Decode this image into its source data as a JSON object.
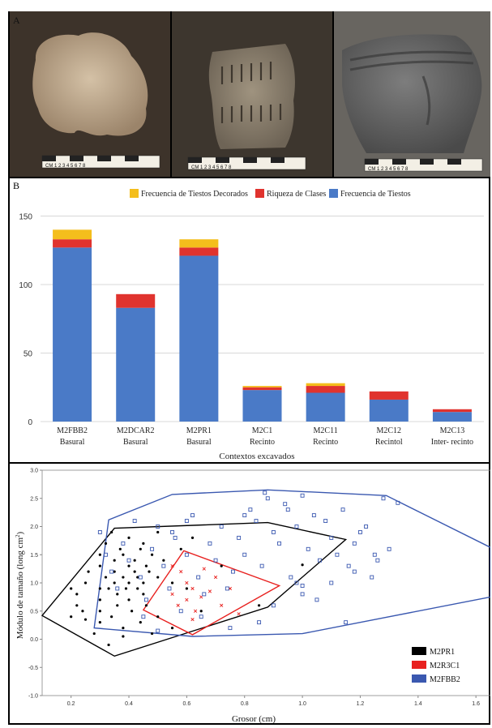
{
  "panel_a": {
    "label": "A",
    "photos": [
      {
        "name": "sherd-plain",
        "bg": "#3a3228",
        "sherd": "#b9a389"
      },
      {
        "name": "sherd-incised",
        "bg": "#3b3530",
        "sherd": "#8c806e"
      },
      {
        "name": "sherd-dark",
        "bg": "#4b4742",
        "sherd": "#5f5f5f"
      }
    ],
    "scale_label": "CM 1 2 3 4 5 6 7 8"
  },
  "panel_b": {
    "label": "B",
    "legend": [
      "Frecuencia de Tiestos Decorados",
      "Riqueza de Clases",
      "Frecuencia de Tiestos"
    ],
    "xlabel": "Contextos excavados"
  },
  "panel_c": {
    "ylabel": "Módulo de tamaño (long cm",
    "ylabel_sup": "2",
    "ylabel_end": ")",
    "xlabel": "Grosor (cm)",
    "legend": [
      "M2PR1",
      "M2R3C1",
      "M2FBB2"
    ]
  },
  "chart_data": [
    {
      "type": "bar",
      "stacked": true,
      "categories": [
        "M2FBB2",
        "M2DCAR2",
        "M2PR1",
        "M2C1",
        "M2C11",
        "M2C12",
        "M2C13"
      ],
      "category_sublabels": [
        "Basural",
        "Basural",
        "Basural",
        "Recinto",
        "Recinto",
        "Recintol",
        "Inter- recinto"
      ],
      "series": [
        {
          "name": "Frecuencia de Tiestos",
          "color": "#4a7ac7",
          "values": [
            127,
            83,
            121,
            23,
            21,
            16,
            7
          ]
        },
        {
          "name": "Riqueza de Clases",
          "color": "#e0332e",
          "values": [
            6,
            10,
            6,
            2,
            5,
            6,
            2
          ]
        },
        {
          "name": "Frecuencia de Tiestos Decorados",
          "color": "#f4be1c",
          "values": [
            7,
            0,
            6,
            1,
            2,
            0,
            0
          ]
        }
      ],
      "yticks": [
        0,
        50,
        100,
        150
      ],
      "ylim": [
        0,
        155
      ],
      "xlabel": "Contextos excavados",
      "grid": true,
      "legend_position": "top"
    },
    {
      "type": "scatter",
      "xlabel": "Grosor (cm)",
      "ylabel": "Módulo de tamaño (long cm2)",
      "xlim": [
        0.1,
        1.65
      ],
      "ylim": [
        -1.0,
        3.0
      ],
      "xticks": [
        0.2,
        0.4,
        0.6,
        0.8,
        1.0,
        1.2,
        1.4,
        1.6
      ],
      "yticks": [
        -1.0,
        -0.5,
        0.0,
        0.5,
        1.0,
        1.5,
        2.0,
        2.5,
        3.0
      ],
      "legend_position": "bottom-right",
      "series": [
        {
          "name": "M2PR1",
          "color": "#000000",
          "marker": "dot",
          "hull": [
            [
              0.1,
              0.42
            ],
            [
              0.35,
              1.97
            ],
            [
              0.88,
              2.07
            ],
            [
              1.15,
              1.77
            ],
            [
              0.88,
              0.57
            ],
            [
              0.35,
              -0.3
            ]
          ],
          "points": [
            [
              0.2,
              0.9
            ],
            [
              0.22,
              0.6
            ],
            [
              0.24,
              0.5
            ],
            [
              0.2,
              0.4
            ],
            [
              0.22,
              0.8
            ],
            [
              0.25,
              1.0
            ],
            [
              0.25,
              0.35
            ],
            [
              0.26,
              1.2
            ],
            [
              0.3,
              1.5
            ],
            [
              0.3,
              1.3
            ],
            [
              0.3,
              0.9
            ],
            [
              0.3,
              0.7
            ],
            [
              0.3,
              0.5
            ],
            [
              0.3,
              0.3
            ],
            [
              0.32,
              1.1
            ],
            [
              0.32,
              1.7
            ],
            [
              0.33,
              0.9
            ],
            [
              0.34,
              0.4
            ],
            [
              0.34,
              1.9
            ],
            [
              0.35,
              1.4
            ],
            [
              0.35,
              1.2
            ],
            [
              0.35,
              1.0
            ],
            [
              0.36,
              0.8
            ],
            [
              0.36,
              0.6
            ],
            [
              0.37,
              1.6
            ],
            [
              0.38,
              1.5
            ],
            [
              0.38,
              1.1
            ],
            [
              0.38,
              0.2
            ],
            [
              0.39,
              0.9
            ],
            [
              0.4,
              1.8
            ],
            [
              0.4,
              1.3
            ],
            [
              0.4,
              1.0
            ],
            [
              0.4,
              0.7
            ],
            [
              0.41,
              0.5
            ],
            [
              0.42,
              1.4
            ],
            [
              0.42,
              1.2
            ],
            [
              0.43,
              1.1
            ],
            [
              0.43,
              0.9
            ],
            [
              0.44,
              1.6
            ],
            [
              0.44,
              0.3
            ],
            [
              0.45,
              1.7
            ],
            [
              0.45,
              1.0
            ],
            [
              0.45,
              0.8
            ],
            [
              0.46,
              1.3
            ],
            [
              0.46,
              0.6
            ],
            [
              0.47,
              1.2
            ],
            [
              0.48,
              1.5
            ],
            [
              0.48,
              0.1
            ],
            [
              0.5,
              1.9
            ],
            [
              0.5,
              1.1
            ],
            [
              0.5,
              0.4
            ],
            [
              0.52,
              1.4
            ],
            [
              0.55,
              1.0
            ],
            [
              0.55,
              0.2
            ],
            [
              0.58,
              1.6
            ],
            [
              0.6,
              0.9
            ],
            [
              0.62,
              1.8
            ],
            [
              0.65,
              0.5
            ],
            [
              0.72,
              1.3
            ],
            [
              0.85,
              0.6
            ],
            [
              1.0,
              1.32
            ],
            [
              0.38,
              0.05
            ],
            [
              0.33,
              -0.1
            ],
            [
              0.28,
              0.1
            ]
          ]
        },
        {
          "name": "M2R3C1",
          "color": "#e8211f",
          "marker": "x",
          "hull": [
            [
              0.45,
              0.52
            ],
            [
              0.59,
              1.57
            ],
            [
              0.92,
              0.95
            ],
            [
              0.62,
              0.08
            ]
          ],
          "points": [
            [
              0.55,
              1.3
            ],
            [
              0.58,
              1.2
            ],
            [
              0.6,
              1.0
            ],
            [
              0.62,
              0.9
            ],
            [
              0.6,
              0.7
            ],
            [
              0.57,
              0.6
            ],
            [
              0.63,
              0.5
            ],
            [
              0.65,
              0.75
            ],
            [
              0.68,
              0.85
            ],
            [
              0.7,
              1.1
            ],
            [
              0.72,
              0.6
            ],
            [
              0.75,
              0.9
            ],
            [
              0.78,
              0.45
            ],
            [
              0.62,
              0.35
            ],
            [
              0.55,
              0.8
            ],
            [
              0.66,
              1.25
            ]
          ]
        },
        {
          "name": "M2FBB2",
          "color": "#3a58b0",
          "marker": "square",
          "hull": [
            [
              0.28,
              0.2
            ],
            [
              0.33,
              2.12
            ],
            [
              0.55,
              2.57
            ],
            [
              0.88,
              2.65
            ],
            [
              1.29,
              2.55
            ],
            [
              1.65,
              1.63
            ],
            [
              1.65,
              0.75
            ],
            [
              1.0,
              0.1
            ],
            [
              0.62,
              0.05
            ],
            [
              0.28,
              0.2
            ]
          ],
          "points": [
            [
              0.3,
              1.9
            ],
            [
              0.32,
              1.5
            ],
            [
              0.34,
              1.2
            ],
            [
              0.36,
              0.9
            ],
            [
              0.38,
              1.7
            ],
            [
              0.4,
              1.4
            ],
            [
              0.42,
              2.1
            ],
            [
              0.44,
              1.1
            ],
            [
              0.46,
              0.7
            ],
            [
              0.48,
              1.6
            ],
            [
              0.5,
              2.0
            ],
            [
              0.52,
              1.3
            ],
            [
              0.54,
              0.9
            ],
            [
              0.56,
              1.8
            ],
            [
              0.58,
              0.5
            ],
            [
              0.6,
              1.5
            ],
            [
              0.62,
              2.2
            ],
            [
              0.64,
              1.1
            ],
            [
              0.66,
              0.8
            ],
            [
              0.68,
              1.7
            ],
            [
              0.7,
              1.4
            ],
            [
              0.72,
              2.0
            ],
            [
              0.74,
              0.9
            ],
            [
              0.76,
              1.2
            ],
            [
              0.78,
              1.8
            ],
            [
              0.8,
              1.5
            ],
            [
              0.82,
              2.3
            ],
            [
              0.84,
              2.1
            ],
            [
              0.86,
              1.3
            ],
            [
              0.88,
              2.5
            ],
            [
              0.9,
              1.9
            ],
            [
              0.92,
              1.7
            ],
            [
              0.94,
              2.4
            ],
            [
              0.96,
              1.1
            ],
            [
              0.98,
              2.0
            ],
            [
              1.0,
              2.55
            ],
            [
              1.02,
              1.6
            ],
            [
              1.04,
              2.2
            ],
            [
              1.06,
              1.4
            ],
            [
              1.08,
              2.1
            ],
            [
              1.1,
              1.8
            ],
            [
              1.12,
              1.5
            ],
            [
              1.14,
              2.3
            ],
            [
              1.16,
              1.3
            ],
            [
              1.18,
              1.7
            ],
            [
              1.2,
              1.9
            ],
            [
              1.22,
              2.0
            ],
            [
              1.24,
              1.1
            ],
            [
              1.26,
              1.4
            ],
            [
              1.28,
              2.5
            ],
            [
              1.3,
              1.6
            ],
            [
              1.0,
              0.8
            ],
            [
              1.0,
              0.95
            ],
            [
              1.05,
              0.7
            ],
            [
              0.98,
              1.0
            ],
            [
              0.9,
              0.6
            ],
            [
              0.85,
              0.3
            ],
            [
              0.75,
              0.2
            ],
            [
              0.65,
              0.4
            ],
            [
              0.95,
              2.3
            ],
            [
              0.87,
              2.6
            ],
            [
              0.8,
              2.2
            ],
            [
              0.6,
              2.1
            ],
            [
              0.55,
              1.9
            ],
            [
              1.15,
              0.3
            ],
            [
              1.1,
              1.0
            ],
            [
              1.25,
              1.5
            ],
            [
              1.33,
              2.42
            ],
            [
              0.45,
              0.4
            ],
            [
              0.5,
              0.15
            ],
            [
              1.18,
              1.2
            ]
          ]
        }
      ]
    }
  ]
}
